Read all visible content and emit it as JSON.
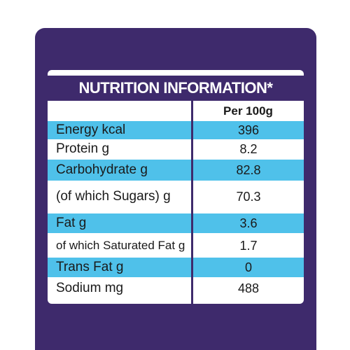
{
  "label": {
    "title": "NUTRITION INFORMATION*",
    "column_header": "Per 100g",
    "rows": [
      {
        "name": "Energy kcal",
        "value": 396
      },
      {
        "name": "Protein g",
        "value": 8.2
      },
      {
        "name": "Carbohydrate g",
        "value": 82.8
      },
      {
        "name": "(of which Sugars) g",
        "value": 70.3
      },
      {
        "name": "Fat g",
        "value": 3.6
      },
      {
        "name": "of which Saturated Fat g",
        "value": 1.7
      },
      {
        "name": "Trans Fat g",
        "value": 0
      },
      {
        "name": "Sodium mg",
        "value": 488
      }
    ]
  }
}
